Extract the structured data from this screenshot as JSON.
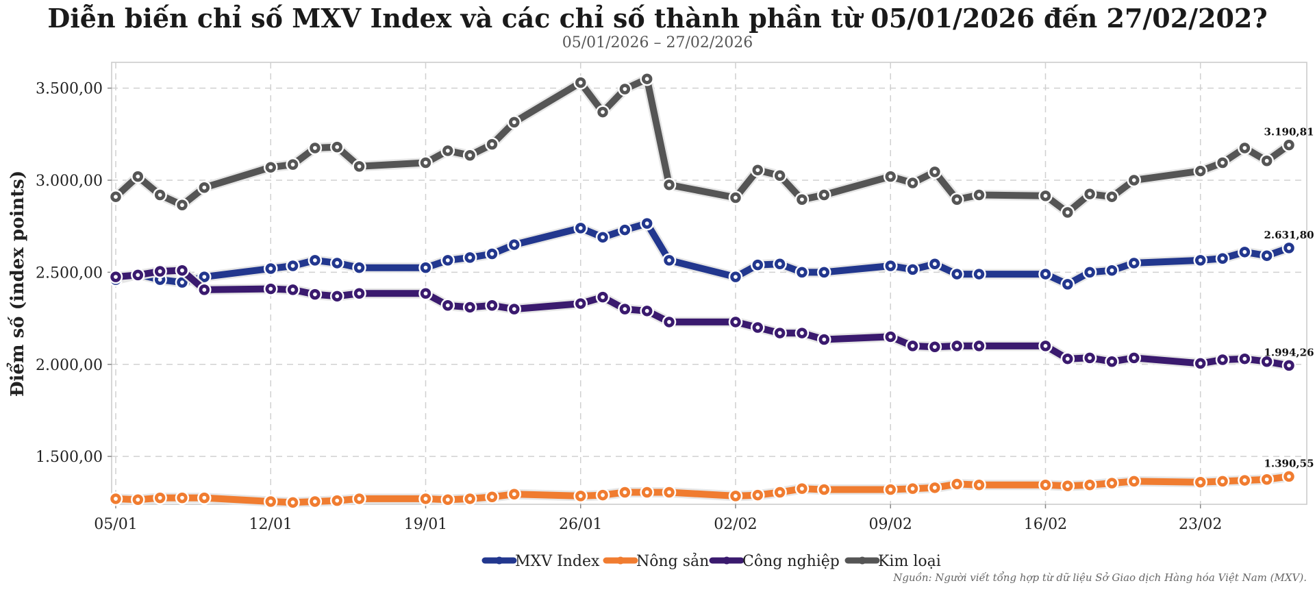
{
  "chart_data": {
    "type": "line",
    "title": "Diễn biến chỉ số MXV Index và các chỉ số thành phần từ 05/01/2026 đến 27/02/202?",
    "subtitle": "05/01/2026 – 27/02/2026",
    "xlabel": "",
    "ylabel": "Điểm số (index points)",
    "source": "Nguồn: Người viết tổng hợp từ dữ liệu Sở Giao dịch Hàng hóa Việt Nam (MXV).",
    "ylim": [
      1240,
      3640
    ],
    "yticks": [
      1500,
      2000,
      2500,
      3000,
      3500
    ],
    "ytick_labels": [
      "1.500,00",
      "2.000,00",
      "2.500,00",
      "3.000,00",
      "3.500,00"
    ],
    "xlim": [
      "2026-01-05",
      "2026-02-27"
    ],
    "xticks": [
      "2026-01-05",
      "2026-01-12",
      "2026-01-19",
      "2026-01-26",
      "2026-02-02",
      "2026-02-09",
      "2026-02-16",
      "2026-02-23"
    ],
    "xtick_labels": [
      "05/01",
      "12/01",
      "19/01",
      "26/01",
      "02/02",
      "09/02",
      "16/02",
      "23/02"
    ],
    "grid": true,
    "legend_position": "bottom",
    "x": [
      "2026-01-05",
      "2026-01-06",
      "2026-01-07",
      "2026-01-08",
      "2026-01-09",
      "2026-01-12",
      "2026-01-13",
      "2026-01-14",
      "2026-01-15",
      "2026-01-16",
      "2026-01-19",
      "2026-01-20",
      "2026-01-21",
      "2026-01-22",
      "2026-01-23",
      "2026-01-26",
      "2026-01-27",
      "2026-01-28",
      "2026-01-29",
      "2026-01-30",
      "2026-02-02",
      "2026-02-03",
      "2026-02-04",
      "2026-02-05",
      "2026-02-06",
      "2026-02-09",
      "2026-02-10",
      "2026-02-11",
      "2026-02-12",
      "2026-02-13",
      "2026-02-16",
      "2026-02-17",
      "2026-02-18",
      "2026-02-19",
      "2026-02-20",
      "2026-02-23",
      "2026-02-24",
      "2026-02-25",
      "2026-02-26",
      "2026-02-27"
    ],
    "series": [
      {
        "name": "MXV Index",
        "color": "#22378e",
        "end_label": "2.631,80",
        "values": [
          2460,
          2490,
          2460,
          2445,
          2475,
          2520,
          2535,
          2565,
          2550,
          2525,
          2525,
          2565,
          2580,
          2600,
          2650,
          2740,
          2690,
          2730,
          2765,
          2565,
          2475,
          2540,
          2545,
          2500,
          2500,
          2535,
          2515,
          2545,
          2490,
          2490,
          2490,
          2435,
          2500,
          2510,
          2550,
          2565,
          2575,
          2610,
          2590,
          2632
        ]
      },
      {
        "name": "Nông sản",
        "color": "#f07c30",
        "end_label": "1.390,55",
        "values": [
          1270,
          1265,
          1275,
          1275,
          1275,
          1255,
          1250,
          1255,
          1260,
          1270,
          1270,
          1265,
          1270,
          1280,
          1295,
          1285,
          1290,
          1305,
          1305,
          1305,
          1285,
          1290,
          1305,
          1325,
          1320,
          1320,
          1325,
          1330,
          1350,
          1345,
          1345,
          1340,
          1345,
          1355,
          1365,
          1360,
          1365,
          1370,
          1375,
          1391
        ]
      },
      {
        "name": "Công nghiệp",
        "color": "#3a1a6e",
        "end_label": "1.994,26",
        "values": [
          2475,
          2485,
          2505,
          2510,
          2405,
          2410,
          2405,
          2380,
          2370,
          2385,
          2385,
          2320,
          2310,
          2320,
          2300,
          2330,
          2365,
          2300,
          2290,
          2230,
          2230,
          2200,
          2170,
          2170,
          2135,
          2150,
          2100,
          2095,
          2100,
          2100,
          2100,
          2030,
          2035,
          2015,
          2035,
          2005,
          2025,
          2030,
          2015,
          1994
        ]
      },
      {
        "name": "Kim loại",
        "color": "#555555",
        "end_label": "3.190,81",
        "values": [
          2910,
          3020,
          2920,
          2865,
          2960,
          3070,
          3085,
          3175,
          3180,
          3075,
          3095,
          3160,
          3135,
          3195,
          3315,
          3530,
          3370,
          3495,
          3550,
          2975,
          2905,
          3055,
          3025,
          2895,
          2920,
          3020,
          2985,
          3045,
          2895,
          2920,
          2915,
          2825,
          2925,
          2910,
          3000,
          3050,
          3095,
          3175,
          3105,
          3191
        ]
      }
    ]
  }
}
